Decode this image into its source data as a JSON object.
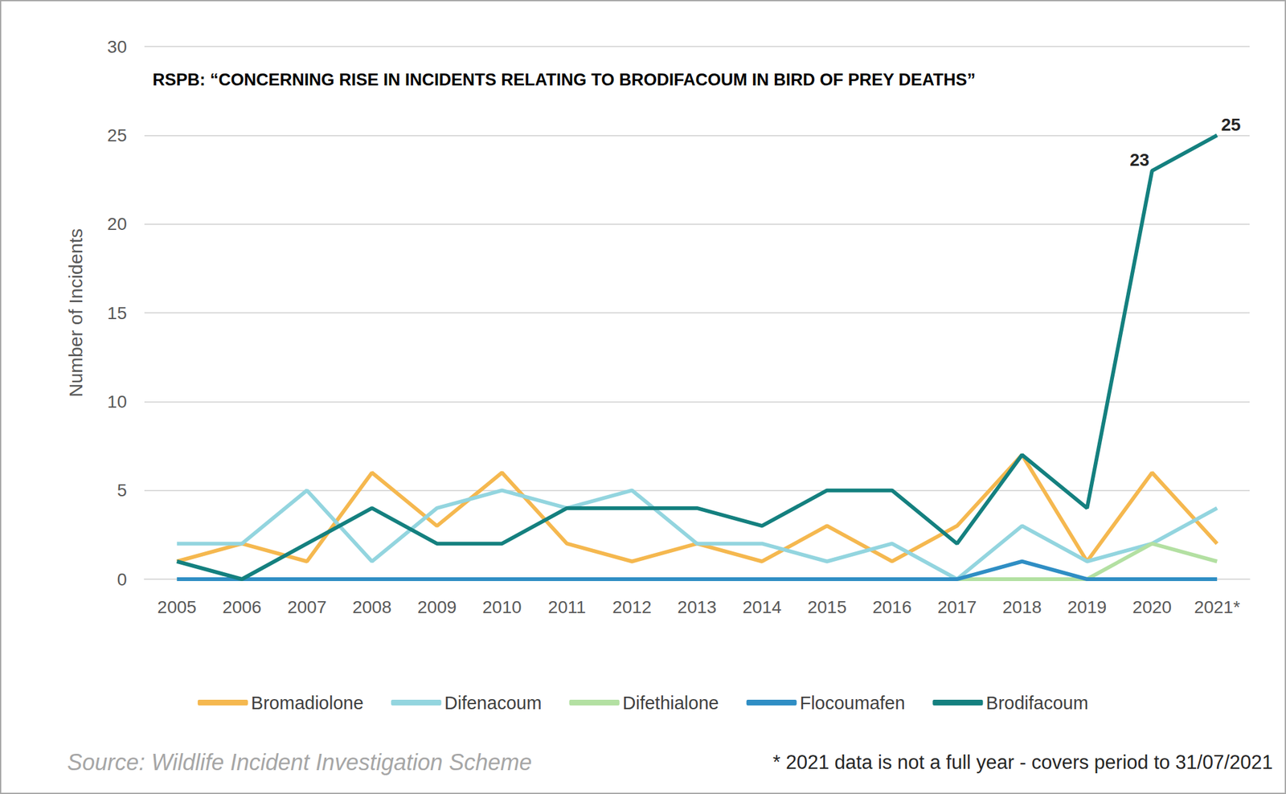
{
  "chart_data": {
    "type": "line",
    "title": "RSPB: “CONCERNING RISE IN INCIDENTS RELATING TO BRODIFACOUM IN BIRD OF PREY DEATHS”",
    "ylabel": "Number of Incidents",
    "source": "Source: Wildlife Incident Investigation Scheme",
    "footnote": "* 2021 data is not a full year - covers period to 31/07/2021",
    "categories": [
      "2005",
      "2006",
      "2007",
      "2008",
      "2009",
      "2010",
      "2011",
      "2012",
      "2013",
      "2014",
      "2015",
      "2016",
      "2017",
      "2018",
      "2019",
      "2020",
      "2021*"
    ],
    "series": [
      {
        "name": "Bromadiolone",
        "color": "#f5b84f",
        "values": [
          1,
          2,
          1,
          6,
          3,
          6,
          2,
          1,
          2,
          1,
          3,
          1,
          3,
          7,
          1,
          6,
          2
        ]
      },
      {
        "name": "Difenacoum",
        "color": "#93d5df",
        "values": [
          2,
          2,
          5,
          1,
          4,
          5,
          4,
          5,
          2,
          2,
          1,
          2,
          0,
          3,
          1,
          2,
          4
        ]
      },
      {
        "name": "Difethialone",
        "color": "#b3e0a2",
        "values": [
          0,
          0,
          0,
          0,
          0,
          0,
          0,
          0,
          0,
          0,
          0,
          0,
          0,
          0,
          0,
          2,
          1
        ]
      },
      {
        "name": "Flocoumafen",
        "color": "#2f8ec4",
        "values": [
          0,
          0,
          0,
          0,
          0,
          0,
          0,
          0,
          0,
          0,
          0,
          0,
          0,
          1,
          0,
          0,
          0
        ]
      },
      {
        "name": "Brodifacoum",
        "color": "#14807f",
        "values": [
          1,
          0,
          2,
          4,
          2,
          2,
          4,
          4,
          4,
          3,
          5,
          5,
          2,
          7,
          4,
          23,
          25
        ]
      }
    ],
    "annotations": [
      {
        "series": "Brodifacoum",
        "category": "2020",
        "value": 23,
        "label": "23"
      },
      {
        "series": "Brodifacoum",
        "category": "2021*",
        "value": 25,
        "label": "25"
      }
    ],
    "ylim": [
      0,
      30
    ],
    "yticks": [
      0,
      5,
      10,
      15,
      20,
      25,
      30
    ],
    "grid": true,
    "legend": "bottom"
  }
}
